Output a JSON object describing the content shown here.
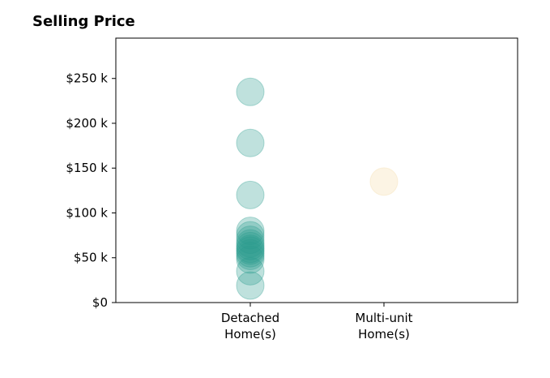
{
  "chart_data": {
    "type": "scatter",
    "title": "Selling Price",
    "xlabel": "",
    "ylabel": "",
    "categories": [
      [
        "Detached",
        "Home(s)"
      ],
      [
        "Multi-unit",
        "Home(s)"
      ]
    ],
    "ylim": [
      0,
      295000
    ],
    "yticks": [
      {
        "value": 0,
        "label": "$0"
      },
      {
        "value": 50000,
        "label": "$50 k"
      },
      {
        "value": 100000,
        "label": "$100 k"
      },
      {
        "value": 150000,
        "label": "$150 k"
      },
      {
        "value": 200000,
        "label": "$200 k"
      },
      {
        "value": 250000,
        "label": "$250 k"
      }
    ],
    "grid": false,
    "legend": "none",
    "series": [
      {
        "category_index": 0,
        "color": "#2a9d8f",
        "values": [
          235000,
          178000,
          120000,
          80000,
          75000,
          70000,
          66000,
          63000,
          60000,
          58000,
          55000,
          52000,
          48000,
          35000,
          19000
        ]
      },
      {
        "category_index": 1,
        "color": "#f4d9a6",
        "values": [
          135000
        ]
      }
    ]
  }
}
